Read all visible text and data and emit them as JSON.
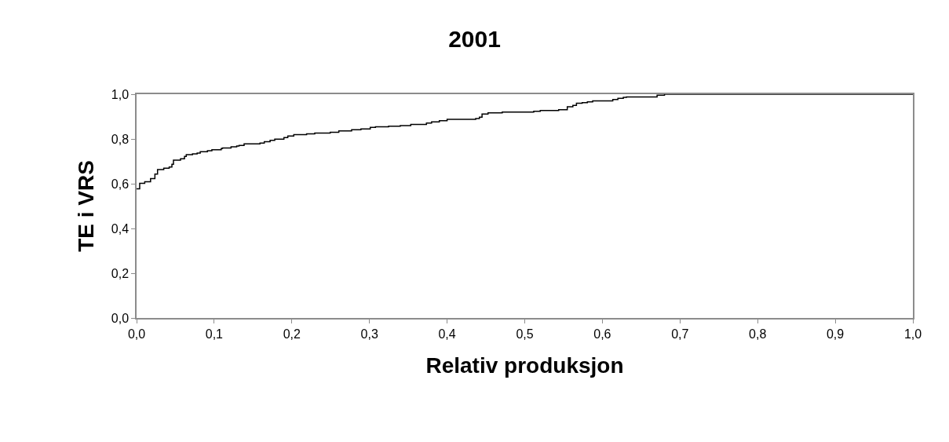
{
  "chart_data": {
    "type": "step",
    "title": "2001",
    "xlabel": "Relativ produksjon",
    "ylabel": "TE i VRS",
    "x": [
      0,
      0.004,
      0.0105,
      0.018,
      0.0236,
      0.027,
      0.035,
      0.042,
      0.0455,
      0.0475,
      0.0566,
      0.0617,
      0.064,
      0.072,
      0.078,
      0.082,
      0.0913,
      0.097,
      0.109,
      0.1106,
      0.1217,
      0.129,
      0.132,
      0.1385,
      0.159,
      0.1645,
      0.172,
      0.178,
      0.1898,
      0.1948,
      0.2025,
      0.219,
      0.2295,
      0.2494,
      0.2605,
      0.277,
      0.289,
      0.301,
      0.3077,
      0.3246,
      0.3397,
      0.3532,
      0.3734,
      0.38,
      0.39,
      0.4,
      0.4368,
      0.4416,
      0.445,
      0.4527,
      0.471,
      0.5116,
      0.52,
      0.5437,
      0.5548,
      0.562,
      0.5666,
      0.574,
      0.5807,
      0.5875,
      0.6134,
      0.62,
      0.627,
      0.631,
      0.6705,
      0.68,
      1
    ],
    "series": [
      {
        "color": "#000000",
        "values": [
          0.577,
          0.602,
          0.609,
          0.623,
          0.643,
          0.663,
          0.669,
          0.675,
          0.687,
          0.705,
          0.711,
          0.722,
          0.73,
          0.733,
          0.737,
          0.743,
          0.747,
          0.752,
          0.757,
          0.76,
          0.765,
          0.768,
          0.771,
          0.778,
          0.782,
          0.788,
          0.794,
          0.799,
          0.806,
          0.813,
          0.819,
          0.823,
          0.826,
          0.83,
          0.836,
          0.841,
          0.845,
          0.852,
          0.854,
          0.857,
          0.86,
          0.865,
          0.871,
          0.876,
          0.882,
          0.888,
          0.891,
          0.897,
          0.911,
          0.917,
          0.92,
          0.924,
          0.927,
          0.931,
          0.944,
          0.95,
          0.96,
          0.962,
          0.966,
          0.97,
          0.976,
          0.982,
          0.986,
          0.988,
          0.996,
          1,
          1
        ]
      }
    ],
    "xlim": [
      0,
      1
    ],
    "xticks": [
      {
        "value": 0,
        "label": "0,0"
      },
      {
        "value": 0.1,
        "label": "0,1"
      },
      {
        "value": 0.2,
        "label": "0,2"
      },
      {
        "value": 0.3,
        "label": "0,3"
      },
      {
        "value": 0.4,
        "label": "0,4"
      },
      {
        "value": 0.5,
        "label": "0,5"
      },
      {
        "value": 0.6,
        "label": "0,6"
      },
      {
        "value": 0.7,
        "label": "0,7"
      },
      {
        "value": 0.8,
        "label": "0,8"
      },
      {
        "value": 0.9,
        "label": "0,9"
      },
      {
        "value": 1,
        "label": "1,0"
      }
    ],
    "ylim": [
      0,
      1
    ],
    "yticks": [
      {
        "value": 0,
        "label": "0,0"
      },
      {
        "value": 0.2,
        "label": "0,2"
      },
      {
        "value": 0.4,
        "label": "0,4"
      },
      {
        "value": 0.6,
        "label": "0,6"
      },
      {
        "value": 0.8,
        "label": "0,8"
      },
      {
        "value": 1,
        "label": "1,0"
      }
    ],
    "grid": false,
    "marker": "none",
    "line_style": "solid"
  }
}
